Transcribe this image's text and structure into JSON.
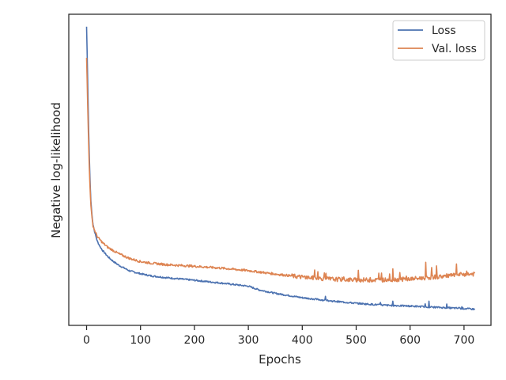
{
  "chart_data": {
    "type": "line",
    "xlabel": "Epochs",
    "ylabel": "Negative log-likelihood",
    "xlim": [
      -33,
      750
    ],
    "ylim": [
      0,
      100
    ],
    "x_ticks": [
      0,
      100,
      200,
      300,
      400,
      500,
      600,
      700
    ],
    "y_ticks_visible": false,
    "grid": false,
    "legend_position": "top-right",
    "series": [
      {
        "name": "Loss",
        "color": "#4c72b0",
        "points": [
          [
            0,
            96
          ],
          [
            1,
            88
          ],
          [
            2,
            79
          ],
          [
            3,
            70
          ],
          [
            4,
            62
          ],
          [
            5,
            55
          ],
          [
            6,
            49
          ],
          [
            7,
            44
          ],
          [
            8,
            40
          ],
          [
            10,
            35.5
          ],
          [
            12,
            32.5
          ],
          [
            15,
            30
          ],
          [
            20,
            27
          ],
          [
            25,
            25.3
          ],
          [
            30,
            24
          ],
          [
            40,
            22
          ],
          [
            50,
            20.5
          ],
          [
            60,
            19.3
          ],
          [
            80,
            17.5
          ],
          [
            100,
            16.6
          ],
          [
            120,
            15.9
          ],
          [
            150,
            15.3
          ],
          [
            200,
            14.5
          ],
          [
            250,
            13.6
          ],
          [
            300,
            12.6
          ],
          [
            320,
            11.4
          ],
          [
            350,
            10.3
          ],
          [
            400,
            8.9
          ],
          [
            450,
            7.9
          ],
          [
            500,
            7.1
          ],
          [
            550,
            6.5
          ],
          [
            600,
            6.2
          ],
          [
            650,
            5.8
          ],
          [
            700,
            5.4
          ],
          [
            720,
            5.2
          ]
        ]
      },
      {
        "name": "Val. loss",
        "color": "#dd8452",
        "points": [
          [
            0,
            86
          ],
          [
            1,
            79
          ],
          [
            2,
            71
          ],
          [
            3,
            64
          ],
          [
            4,
            57
          ],
          [
            5,
            51
          ],
          [
            6,
            46
          ],
          [
            7,
            42
          ],
          [
            8,
            38.5
          ],
          [
            10,
            34.5
          ],
          [
            12,
            32
          ],
          [
            15,
            30.5
          ],
          [
            20,
            28.5
          ],
          [
            30,
            26.5
          ],
          [
            40,
            25
          ],
          [
            50,
            24
          ],
          [
            60,
            23
          ],
          [
            80,
            21.5
          ],
          [
            100,
            20.5
          ],
          [
            120,
            20
          ],
          [
            150,
            19.5
          ],
          [
            200,
            19
          ],
          [
            250,
            18.4
          ],
          [
            300,
            17.6
          ],
          [
            350,
            16.5
          ],
          [
            400,
            15.5
          ],
          [
            450,
            14.9
          ],
          [
            500,
            14.6
          ],
          [
            550,
            14.6
          ],
          [
            600,
            14.9
          ],
          [
            650,
            15.6
          ],
          [
            700,
            16.4
          ],
          [
            720,
            16.5
          ]
        ]
      }
    ]
  }
}
